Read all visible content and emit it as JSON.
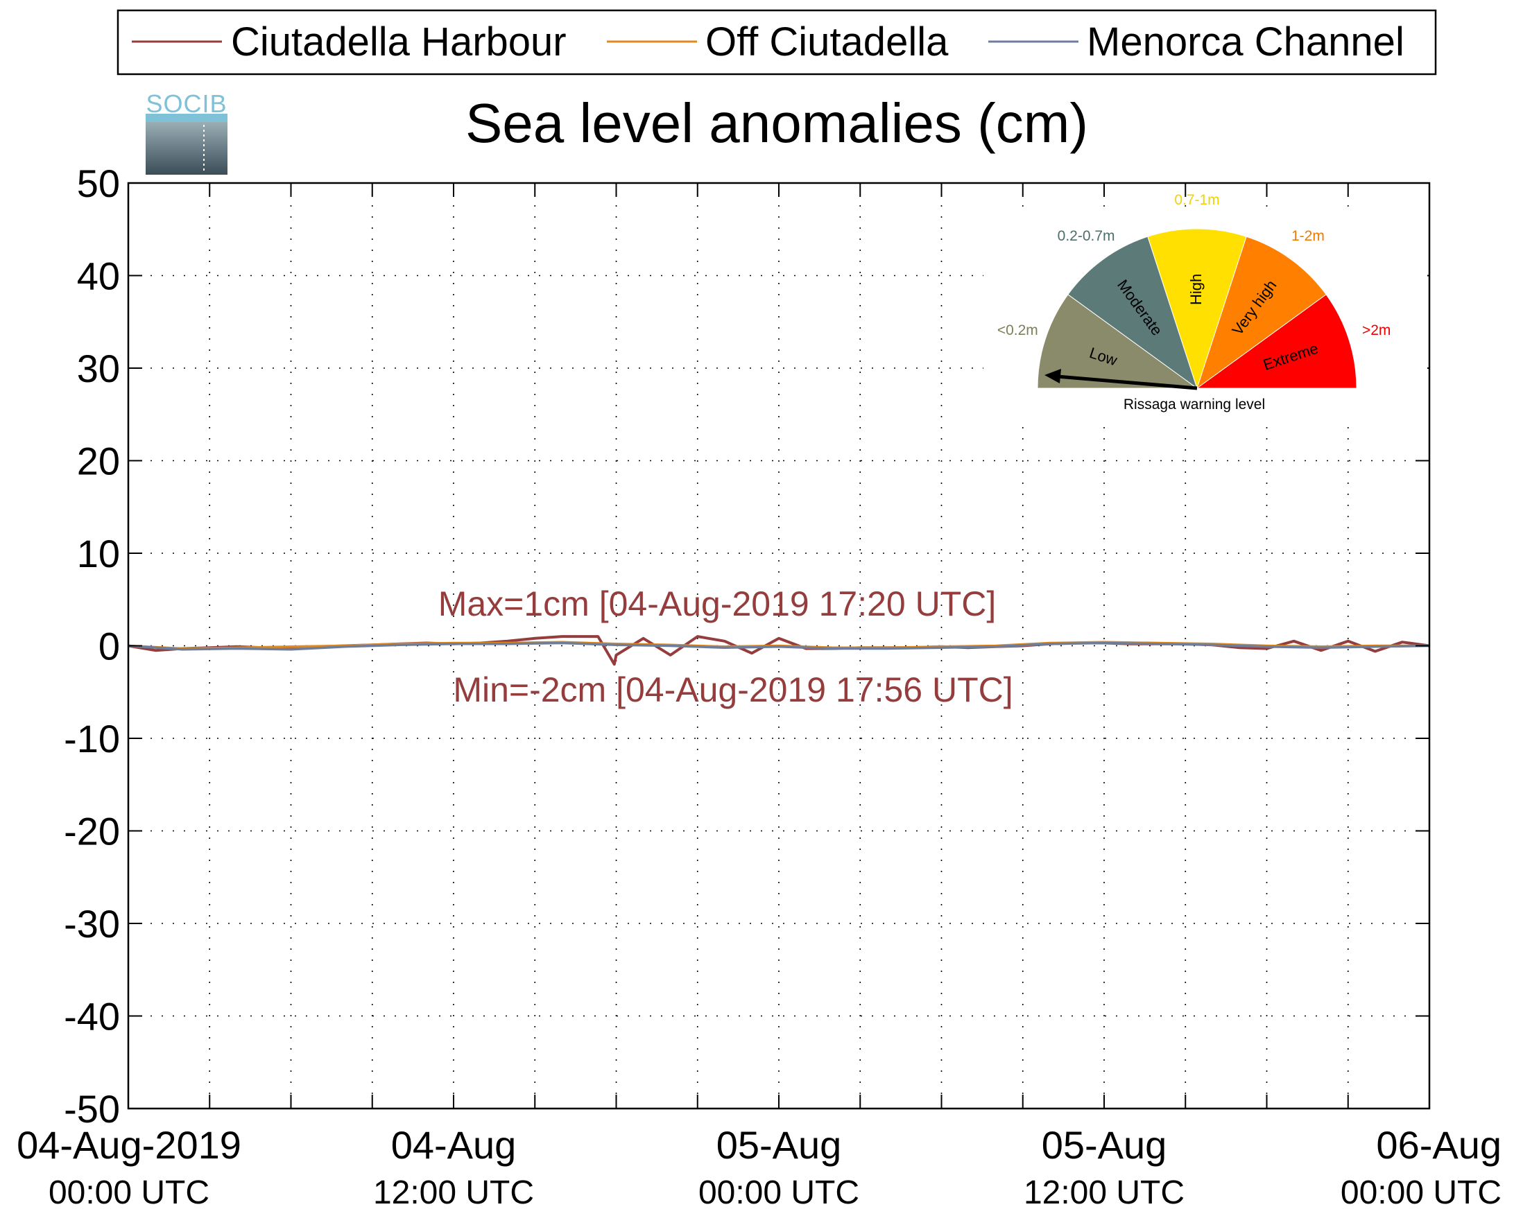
{
  "chart_data": {
    "type": "line",
    "title": "Sea level anomalies (cm)",
    "xlabel": "",
    "ylabel": "",
    "ylim": [
      -50,
      50
    ],
    "yticks": [
      50,
      40,
      30,
      20,
      10,
      0,
      -10,
      -20,
      -30,
      -40,
      -50
    ],
    "y_tick_labels": [
      "50",
      "40",
      "30",
      "20",
      "10",
      "0",
      "-10",
      "-20",
      "-30",
      "-40",
      "-50"
    ],
    "xlim_hours": [
      0,
      48
    ],
    "x_tick_labels": [
      {
        "date": "04-Aug-2019",
        "time": "00:00 UTC"
      },
      {
        "date": "04-Aug",
        "time": "12:00 UTC"
      },
      {
        "date": "05-Aug",
        "time": "00:00 UTC"
      },
      {
        "date": "05-Aug",
        "time": "12:00 UTC"
      },
      {
        "date": "06-Aug",
        "time": "00:00 UTC"
      }
    ],
    "grid": true,
    "legend_position": "top",
    "series": [
      {
        "name": "Ciutadella Harbour",
        "color": "#953d3d",
        "time_hours": [
          0,
          1,
          2,
          3,
          4,
          5,
          6,
          7,
          8,
          9,
          10,
          11,
          12,
          13,
          14,
          15,
          16,
          17,
          17.33,
          17.93,
          18,
          19,
          20,
          21,
          22,
          23,
          24,
          25,
          26,
          27,
          28,
          29,
          30,
          31,
          32,
          33,
          34,
          35,
          36,
          37,
          38,
          39,
          40,
          41,
          42,
          43,
          44,
          45,
          46,
          47,
          48
        ],
        "values": [
          0,
          -0.5,
          -0.3,
          -0.2,
          -0.1,
          -0.2,
          -0.3,
          -0.1,
          0,
          0.1,
          0.2,
          0.3,
          0.2,
          0.3,
          0.5,
          0.8,
          1,
          1,
          1,
          -2,
          -1,
          0.8,
          -1,
          1,
          0.5,
          -0.8,
          0.8,
          -0.3,
          -0.3,
          -0.2,
          -0.2,
          -0.2,
          -0.1,
          -0.2,
          -0.1,
          0,
          0.2,
          0.3,
          0.3,
          0.2,
          0.2,
          0.2,
          0.1,
          -0.2,
          -0.3,
          0.5,
          -0.5,
          0.5,
          -0.6,
          0.4,
          0
        ]
      },
      {
        "name": "Off Ciutadella",
        "color": "#e08a1e",
        "time_hours": [
          0,
          2,
          4,
          6,
          8,
          10,
          12,
          14,
          16,
          18,
          20,
          22,
          24,
          26,
          28,
          30,
          32,
          34,
          36,
          38,
          40,
          42,
          44,
          46,
          48
        ],
        "values": [
          0,
          -0.3,
          -0.2,
          -0.1,
          0,
          0.2,
          0.3,
          0.3,
          0.4,
          0.2,
          0.1,
          -0.1,
          0,
          -0.2,
          -0.2,
          -0.1,
          0,
          0.3,
          0.4,
          0.3,
          0.2,
          0,
          -0.1,
          0,
          0
        ]
      },
      {
        "name": "Menorca Channel",
        "color": "#6e7e9a",
        "time_hours": [
          0,
          2,
          4,
          6,
          8,
          10,
          12,
          14,
          16,
          18,
          20,
          22,
          24,
          26,
          28,
          30,
          32,
          34,
          36,
          38,
          40,
          42,
          44,
          46,
          48
        ],
        "values": [
          0,
          -0.4,
          -0.3,
          -0.4,
          -0.1,
          0.1,
          0.2,
          0.2,
          0.3,
          0.1,
          0,
          -0.2,
          -0.1,
          -0.3,
          -0.3,
          -0.2,
          -0.1,
          0.2,
          0.3,
          0.2,
          0.1,
          -0.1,
          -0.2,
          -0.1,
          0
        ]
      }
    ],
    "annotations": [
      {
        "text": "Max=1cm [04-Aug-2019 17:20 UTC]",
        "color": "#953d3d"
      },
      {
        "text": "Min=-2cm [04-Aug-2019 17:56 UTC]",
        "color": "#953d3d"
      }
    ]
  },
  "logo": {
    "text": "SOCIB"
  },
  "gauge": {
    "caption": "Rissaga warning level",
    "needle_level": "Low",
    "sectors": [
      {
        "name": "Low",
        "range": "<0.2m",
        "color": "#8a8b6a",
        "range_color": "#7e7f55"
      },
      {
        "name": "Moderate",
        "range": "0.2-0.7m",
        "color": "#5c7a78",
        "range_color": "#4e6d6b"
      },
      {
        "name": "High",
        "range": "0.7-1m",
        "color": "#ffe000",
        "range_color": "#f2d300"
      },
      {
        "name": "Very high",
        "range": "1-2m",
        "color": "#ff8000",
        "range_color": "#f07a00"
      },
      {
        "name": "Extreme",
        "range": ">2m",
        "color": "#ff0000",
        "range_color": "#ee0000"
      }
    ]
  }
}
